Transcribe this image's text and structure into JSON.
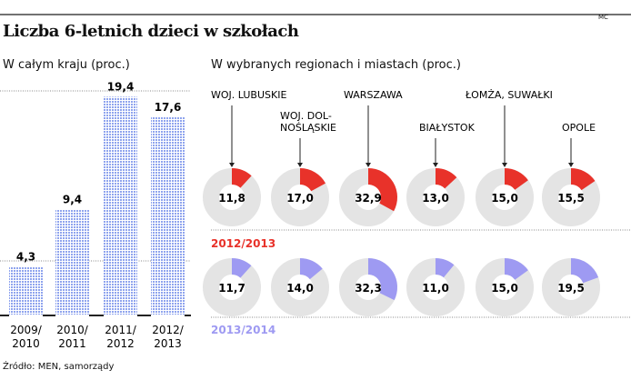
{
  "credit": "MC",
  "title": "Liczba 6-letnich dzieci w szkołach",
  "source": "Źródło: MEN, samorządy",
  "colors": {
    "bar": "#8fa4ee",
    "red": "#e8322a",
    "purple": "#9e9af2",
    "ring": "#e4e4e4"
  },
  "chart_data": [
    {
      "type": "bar",
      "title": "W całym kraju (proc.)",
      "categories": [
        "2009/\n2010",
        "2010/\n2011",
        "2011/\n2012",
        "2012/\n2013"
      ],
      "category_lines": [
        [
          "2009/",
          "2010"
        ],
        [
          "2010/",
          "2011"
        ],
        [
          "2011/",
          "2012"
        ],
        [
          "2012/",
          "2013"
        ]
      ],
      "values": [
        4.3,
        9.4,
        19.4,
        17.6
      ],
      "labels": [
        "4,3",
        "9,4",
        "19,4",
        "17,6"
      ]
    },
    {
      "type": "pie",
      "title": "W wybranych regionach i miastach (proc.)",
      "regions": [
        "WOJ. LUBUSKIE",
        "WOJ. DOL-\nNOŚLĄSKIE",
        "WARSZAWA",
        "BIAŁYSTOK",
        "ŁOMŻA, SUWAŁKI",
        "OPOLE"
      ],
      "region_lines": [
        [
          "WOJ. LUBUSKIE"
        ],
        [
          "WOJ. DOL-",
          "NOŚLĄSKIE"
        ],
        [
          "WARSZAWA"
        ],
        [
          "BIAŁYSTOK"
        ],
        [
          "ŁOMŻA, SUWAŁKI"
        ],
        [
          "OPOLE"
        ]
      ],
      "series": [
        {
          "name": "2012/2013",
          "values": [
            11.8,
            17.0,
            32.9,
            13.0,
            15.0,
            15.5
          ],
          "labels": [
            "11,8",
            "17,0",
            "32,9",
            "13,0",
            "15,0",
            "15,5"
          ]
        },
        {
          "name": "2013/2014",
          "values": [
            11.7,
            14.0,
            32.3,
            11.0,
            15.0,
            19.5
          ],
          "labels": [
            "11,7",
            "14,0",
            "32,3",
            "11,0",
            "15,0",
            "19,5"
          ]
        }
      ]
    }
  ]
}
